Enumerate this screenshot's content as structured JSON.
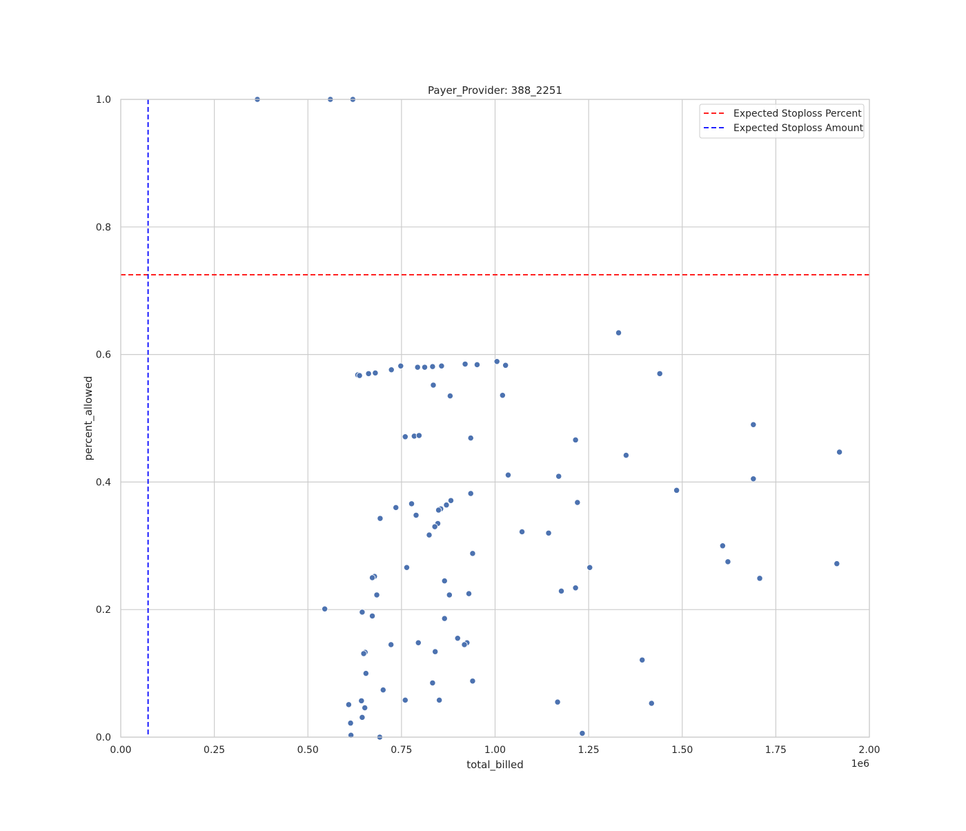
{
  "chart_data": {
    "type": "scatter",
    "title": "Payer_Provider: 388_2251",
    "xlabel": "total_billed",
    "ylabel": "percent_allowed",
    "x_offset_text": "1e6",
    "xlim": [
      0,
      2000000
    ],
    "ylim": [
      0,
      1.0
    ],
    "x_ticks": [
      0,
      250000,
      500000,
      750000,
      1000000,
      1250000,
      1500000,
      1750000,
      2000000
    ],
    "x_tick_labels": [
      "0.00",
      "0.25",
      "0.50",
      "0.75",
      "1.00",
      "1.25",
      "1.50",
      "1.75",
      "2.00"
    ],
    "y_ticks": [
      0.0,
      0.2,
      0.4,
      0.6,
      0.8,
      1.0
    ],
    "y_tick_labels": [
      "0.0",
      "0.2",
      "0.4",
      "0.6",
      "0.8",
      "1.0"
    ],
    "grid": true,
    "legend_position": "top-right",
    "point_color": "#4c72b0",
    "reference_lines": [
      {
        "name": "Expected Stoploss Percent",
        "orientation": "horizontal",
        "value": 0.725,
        "color": "#ff0000",
        "style": "dashed"
      },
      {
        "name": "Expected Stoploss Amount",
        "orientation": "vertical",
        "value": 73000,
        "color": "#0000ff",
        "style": "dashed"
      }
    ],
    "points": [
      [
        365000,
        1.0
      ],
      [
        560000,
        1.0
      ],
      [
        620000,
        1.0
      ],
      [
        1330000,
        0.634
      ],
      [
        633000,
        0.568
      ],
      [
        638000,
        0.567
      ],
      [
        662000,
        0.57
      ],
      [
        680000,
        0.571
      ],
      [
        723000,
        0.576
      ],
      [
        748000,
        0.582
      ],
      [
        793000,
        0.58
      ],
      [
        812000,
        0.58
      ],
      [
        833000,
        0.581
      ],
      [
        857000,
        0.582
      ],
      [
        920000,
        0.585
      ],
      [
        952000,
        0.584
      ],
      [
        1005000,
        0.589
      ],
      [
        1028000,
        0.583
      ],
      [
        1440000,
        0.57
      ],
      [
        835000,
        0.552
      ],
      [
        880000,
        0.535
      ],
      [
        1020000,
        0.536
      ],
      [
        760000,
        0.471
      ],
      [
        784000,
        0.472
      ],
      [
        797000,
        0.473
      ],
      [
        935000,
        0.469
      ],
      [
        1215000,
        0.466
      ],
      [
        1690000,
        0.49
      ],
      [
        1350000,
        0.442
      ],
      [
        1920000,
        0.447
      ],
      [
        1035000,
        0.411
      ],
      [
        1170000,
        0.409
      ],
      [
        1690000,
        0.405
      ],
      [
        1485000,
        0.387
      ],
      [
        935000,
        0.382
      ],
      [
        882000,
        0.371
      ],
      [
        777000,
        0.366
      ],
      [
        1220000,
        0.368
      ],
      [
        870000,
        0.364
      ],
      [
        735000,
        0.36
      ],
      [
        855000,
        0.358
      ],
      [
        849000,
        0.356
      ],
      [
        789000,
        0.348
      ],
      [
        693000,
        0.343
      ],
      [
        847000,
        0.335
      ],
      [
        839000,
        0.33
      ],
      [
        1072000,
        0.322
      ],
      [
        1143000,
        0.32
      ],
      [
        824000,
        0.317
      ],
      [
        1608000,
        0.3
      ],
      [
        940000,
        0.288
      ],
      [
        1622000,
        0.275
      ],
      [
        1913000,
        0.272
      ],
      [
        764000,
        0.266
      ],
      [
        1253000,
        0.266
      ],
      [
        678000,
        0.252
      ],
      [
        672000,
        0.25
      ],
      [
        1707000,
        0.249
      ],
      [
        865000,
        0.245
      ],
      [
        1215000,
        0.234
      ],
      [
        1177000,
        0.229
      ],
      [
        930000,
        0.225
      ],
      [
        878000,
        0.223
      ],
      [
        684000,
        0.223
      ],
      [
        545000,
        0.201
      ],
      [
        645000,
        0.196
      ],
      [
        672000,
        0.19
      ],
      [
        865000,
        0.186
      ],
      [
        900000,
        0.155
      ],
      [
        925000,
        0.148
      ],
      [
        795000,
        0.148
      ],
      [
        918000,
        0.145
      ],
      [
        722000,
        0.145
      ],
      [
        840000,
        0.134
      ],
      [
        653000,
        0.133
      ],
      [
        649000,
        0.131
      ],
      [
        1393000,
        0.121
      ],
      [
        655000,
        0.1
      ],
      [
        940000,
        0.088
      ],
      [
        833000,
        0.085
      ],
      [
        701000,
        0.074
      ],
      [
        760000,
        0.058
      ],
      [
        851000,
        0.058
      ],
      [
        643000,
        0.057
      ],
      [
        1167000,
        0.055
      ],
      [
        1418000,
        0.053
      ],
      [
        609000,
        0.051
      ],
      [
        652000,
        0.046
      ],
      [
        645000,
        0.031
      ],
      [
        614000,
        0.022
      ],
      [
        1233000,
        0.006
      ],
      [
        615000,
        0.003
      ],
      [
        692000,
        0.0
      ]
    ]
  }
}
